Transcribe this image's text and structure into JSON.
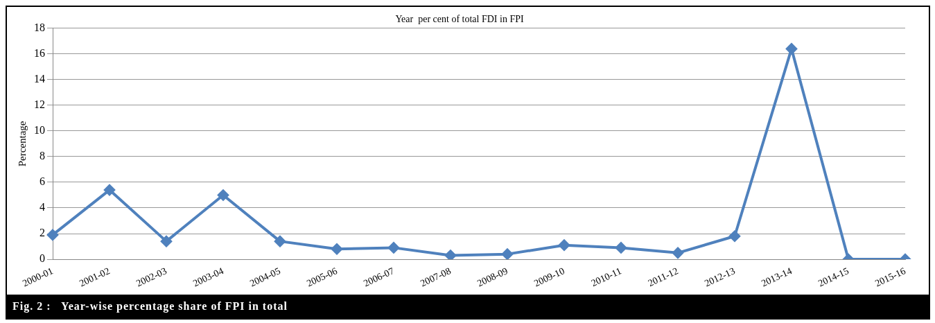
{
  "chart_data": {
    "type": "line",
    "title": "Year  per cent of total FDI in FPI",
    "ylabel": "Percentage",
    "categories": [
      "2000-01",
      "2001-02",
      "2002-03",
      "2003-04",
      "2004-05",
      "2005-06",
      "2006-07",
      "2007-08",
      "2008-09",
      "2009-10",
      "2010-11",
      "2011-12",
      "2012-13",
      "2013-14",
      "2014-15",
      "2015-16"
    ],
    "series": [
      {
        "color": "#4f81bd",
        "values": [
          1.9,
          5.4,
          1.4,
          5.0,
          1.4,
          0.8,
          0.9,
          0.3,
          0.4,
          1.1,
          0.9,
          0.5,
          1.8,
          16.4,
          0,
          0
        ]
      }
    ],
    "ylim": [
      0,
      18
    ],
    "yticks": [
      0,
      2,
      4,
      6,
      8,
      10,
      12,
      14,
      16,
      18
    ],
    "grid": "y",
    "marker": "diamond",
    "line_style": "solid",
    "legend": false,
    "annotations": [
      "Fig. 2 :   Year-wise percentage share of FPI in total"
    ]
  }
}
